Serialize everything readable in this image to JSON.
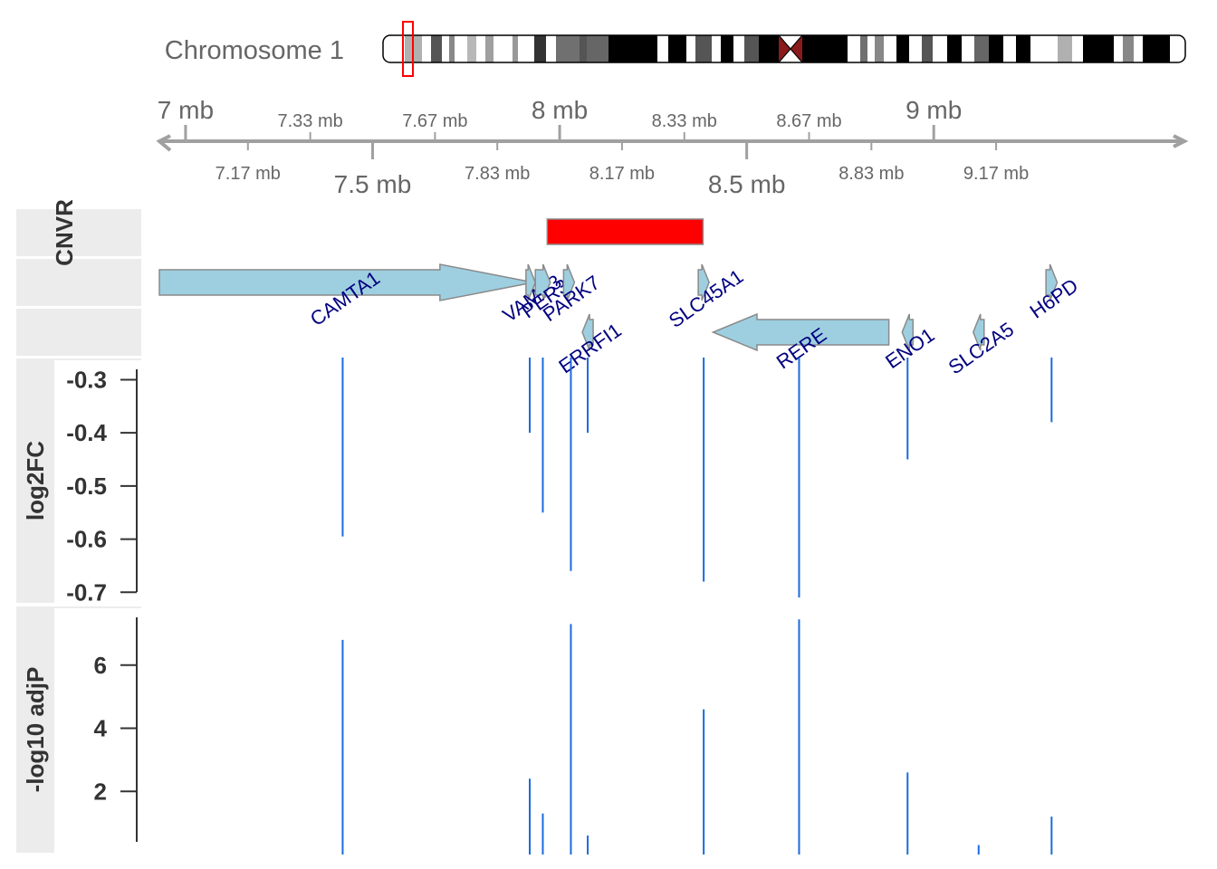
{
  "ideogram": {
    "title": "Chromosome 1"
  },
  "axis": {
    "major_ticks": [
      {
        "value": 7.0,
        "label": "7 mb"
      },
      {
        "value": 7.5,
        "label": "7.5 mb"
      },
      {
        "value": 8.0,
        "label": "8 mb"
      },
      {
        "value": 8.5,
        "label": "8.5 mb"
      },
      {
        "value": 9.0,
        "label": "9 mb"
      }
    ],
    "minor_ticks": [
      {
        "value": 7.1667,
        "label": "7.17 mb"
      },
      {
        "value": 7.3333,
        "label": "7.33 mb"
      },
      {
        "value": 7.6667,
        "label": "7.67 mb"
      },
      {
        "value": 7.8333,
        "label": "7.83 mb"
      },
      {
        "value": 8.1667,
        "label": "8.17 mb"
      },
      {
        "value": 8.3333,
        "label": "8.33 mb"
      },
      {
        "value": 8.6667,
        "label": "8.67 mb"
      },
      {
        "value": 8.8333,
        "label": "8.83 mb"
      },
      {
        "value": 9.1667,
        "label": "9.17 mb"
      }
    ]
  },
  "panels": {
    "cnvr_title": "CNVR",
    "log2fc_title": "log2FC",
    "pval_title": "-log10 adjP"
  },
  "chart_data": {
    "type": "genome_tracks",
    "xlim": [
      6.93,
      9.67
    ],
    "x_unit": "mb",
    "cnvr_region": {
      "start": 7.9667,
      "end": 8.3833,
      "color": "#ff0000"
    },
    "genes": [
      {
        "name": "CAMTA1",
        "label": "CAMTA1",
        "start": 6.93,
        "end": 7.93,
        "strand": "+",
        "row": 0,
        "pos": 7.42
      },
      {
        "name": "VAMP3",
        "label": "VAMP3",
        "start": 7.91,
        "end": 7.935,
        "strand": "+",
        "row": 0,
        "pos": 7.92
      },
      {
        "name": "PER3",
        "label": "PER3",
        "start": 7.935,
        "end": 7.975,
        "strand": "+",
        "row": 0,
        "pos": 7.955
      },
      {
        "name": "PARK7",
        "label": "PARK7",
        "start": 8.015,
        "end": 8.035,
        "strand": "+",
        "row": 0,
        "pos": 8.025
      },
      {
        "name": "SLC45A1",
        "label": "SLC45A1",
        "start": 8.375,
        "end": 8.395,
        "strand": "+",
        "row": 0,
        "pos": 8.385
      },
      {
        "name": "ERRFI1",
        "label": "ERRFI1",
        "start": 8.065,
        "end": 8.085,
        "strand": "-",
        "row": 1,
        "pos": 8.075
      },
      {
        "name": "RERE",
        "label": "RERE",
        "start": 8.41,
        "end": 8.88,
        "strand": "-",
        "row": 1,
        "pos": 8.64
      },
      {
        "name": "ENO1",
        "label": "ENO1",
        "start": 8.92,
        "end": 8.94,
        "strand": "-",
        "row": 1,
        "pos": 8.93
      },
      {
        "name": "SLC2A5",
        "label": "SLC2A5",
        "start": 9.11,
        "end": 9.13,
        "strand": "-",
        "row": 1,
        "pos": 9.12
      },
      {
        "name": "H6PD",
        "label": "H6PD",
        "start": 9.3,
        "end": 9.33,
        "strand": "+",
        "row": 0,
        "pos": 9.315
      }
    ],
    "series": [
      {
        "name": "log2FC",
        "ylim": [
          -0.72,
          -0.26
        ],
        "yticks": [
          -0.3,
          -0.4,
          -0.5,
          -0.6,
          -0.7
        ],
        "baseline": -0.27,
        "points": [
          {
            "x": 7.42,
            "y": -0.595
          },
          {
            "x": 7.92,
            "y": -0.4
          },
          {
            "x": 7.955,
            "y": -0.55
          },
          {
            "x": 8.075,
            "y": -0.4
          },
          {
            "x": 8.03,
            "y": -0.66
          },
          {
            "x": 8.385,
            "y": -0.68
          },
          {
            "x": 8.64,
            "y": -0.73
          },
          {
            "x": 8.93,
            "y": -0.45
          },
          {
            "x": 9.315,
            "y": -0.38
          }
        ]
      },
      {
        "name": "-log10 adjP",
        "ylim": [
          0,
          7.8
        ],
        "yticks": [
          2,
          4,
          6
        ],
        "baseline": 0,
        "points": [
          {
            "x": 7.42,
            "y": 6.8
          },
          {
            "x": 7.92,
            "y": 2.4
          },
          {
            "x": 7.955,
            "y": 1.3
          },
          {
            "x": 8.03,
            "y": 7.3
          },
          {
            "x": 8.075,
            "y": 0.6
          },
          {
            "x": 8.385,
            "y": 4.6
          },
          {
            "x": 8.64,
            "y": 7.45
          },
          {
            "x": 8.93,
            "y": 2.6
          },
          {
            "x": 9.12,
            "y": 0.3
          },
          {
            "x": 9.315,
            "y": 1.2
          }
        ]
      }
    ],
    "colors": {
      "bars": "#1a6bdf",
      "gene_fill": "#9ecfe0",
      "gene_stroke": "#8a8a8a",
      "gene_label": "#000080",
      "cnvr": "#ff0000"
    }
  },
  "colors": {
    "panel_title_bg": "#ececec",
    "axis_gray": "#a0a0a0",
    "centromere": "#8b1a1a",
    "band_highlight": "#ff0000"
  }
}
